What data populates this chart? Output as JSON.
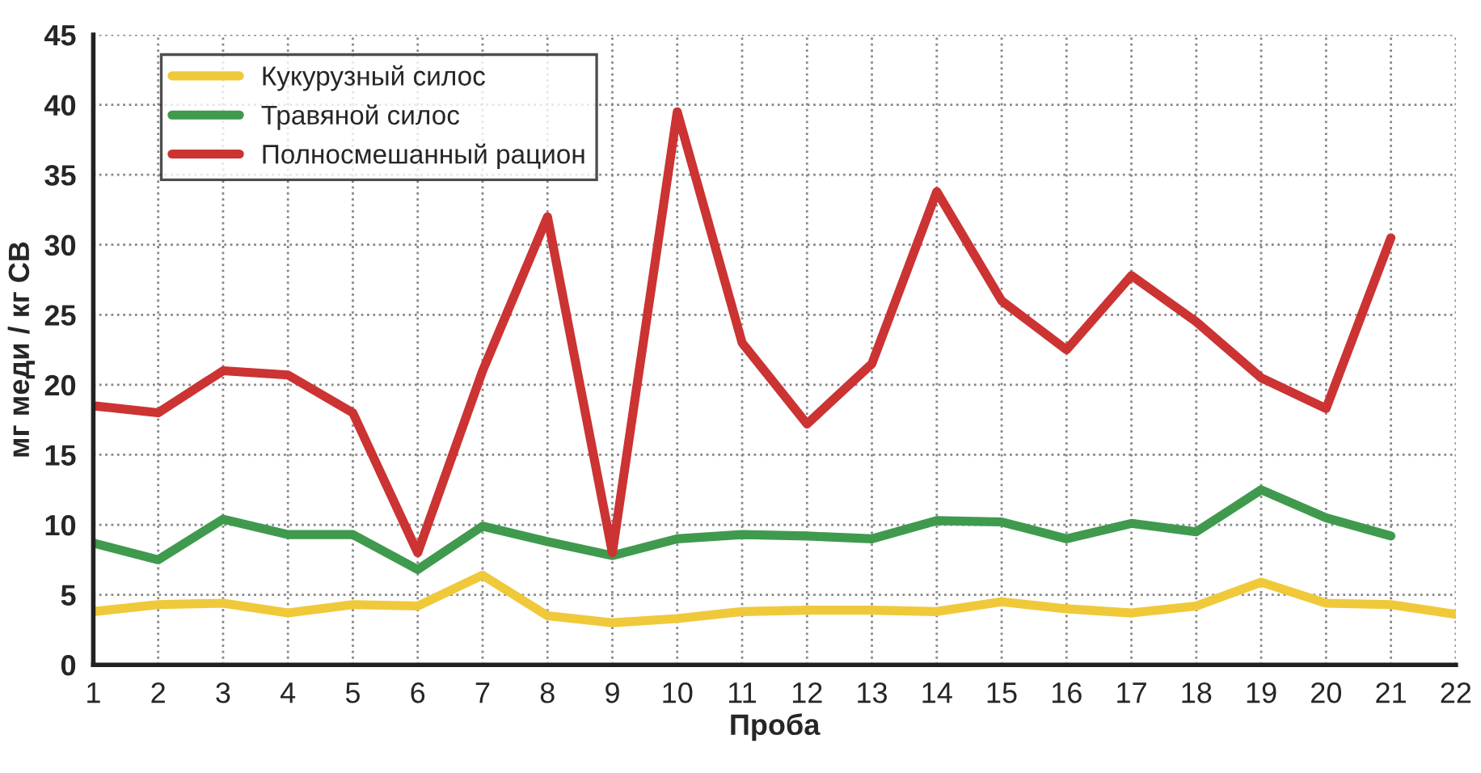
{
  "chart_data": {
    "type": "line",
    "xlabel": "Проба",
    "ylabel": "мг меди / кг СВ",
    "xlim": [
      1,
      22
    ],
    "xticks": [
      1,
      2,
      3,
      4,
      5,
      6,
      7,
      8,
      9,
      10,
      11,
      12,
      13,
      14,
      15,
      16,
      17,
      18,
      19,
      20,
      21,
      22
    ],
    "ylim": [
      0,
      45
    ],
    "yticks": [
      0,
      5,
      10,
      15,
      20,
      25,
      30,
      35,
      40,
      45
    ],
    "grid": true,
    "legend": "top left",
    "line_style": "solid",
    "marker": "none",
    "series": [
      {
        "name": "Кукурузный силос",
        "color": "#f0c93a",
        "x": [
          1,
          2,
          3,
          4,
          5,
          6,
          7,
          8,
          9,
          10,
          11,
          12,
          13,
          14,
          15,
          16,
          17,
          18,
          19,
          20,
          21,
          22
        ],
        "values": [
          3.8,
          4.3,
          4.4,
          3.7,
          4.3,
          4.2,
          6.4,
          3.5,
          3,
          3.3,
          3.8,
          3.9,
          3.9,
          3.8,
          4.5,
          4,
          3.7,
          4.2,
          5.9,
          4.4,
          4.3,
          3.6
        ]
      },
      {
        "name": "Травяной силос",
        "color": "#3f9a4e",
        "x": [
          1,
          2,
          3,
          4,
          5,
          6,
          7,
          8,
          9,
          10,
          11,
          12,
          13,
          14,
          15,
          16,
          17,
          18,
          19,
          20,
          21
        ],
        "values": [
          8.7,
          7.5,
          10.4,
          9.3,
          9.3,
          6.8,
          9.9,
          8.8,
          7.8,
          9,
          9.3,
          9.2,
          9,
          10.3,
          10.2,
          9,
          10.1,
          9.5,
          12.5,
          10.5,
          9.2
        ]
      },
      {
        "name": "Полносмешанный рацион",
        "color": "#cc3333",
        "x": [
          1,
          2,
          3,
          4,
          5,
          6,
          7,
          8,
          9,
          10,
          11,
          12,
          13,
          14,
          15,
          16,
          17,
          18,
          19,
          20,
          21
        ],
        "values": [
          18.5,
          18,
          21,
          20.7,
          18,
          8,
          21,
          32,
          8,
          39.5,
          23,
          17.2,
          21.5,
          33.8,
          26,
          22.5,
          27.8,
          24.5,
          20.5,
          18.3,
          30.5
        ]
      }
    ]
  }
}
